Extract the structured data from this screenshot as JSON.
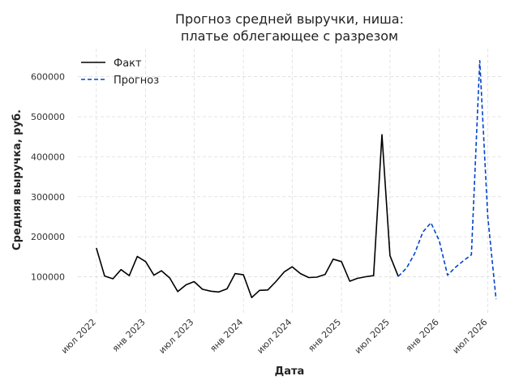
{
  "chart_data": {
    "type": "line",
    "title": [
      "Прогноз средней выручки, ниша:",
      "платье облегающее с разрезом"
    ],
    "xlabel": "Дата",
    "ylabel": "Средняя выручка, руб.",
    "xlim": [
      "2022-04-23",
      "2026-08-20"
    ],
    "ylim": [
      10000,
      670000
    ],
    "grid": true,
    "legend_position": "top-left",
    "x_ticks": [
      {
        "label": "июл 2022",
        "date": "2022-07-01"
      },
      {
        "label": "янв 2023",
        "date": "2023-01-01"
      },
      {
        "label": "июл 2023",
        "date": "2023-07-01"
      },
      {
        "label": "янв 2024",
        "date": "2024-01-01"
      },
      {
        "label": "июл 2024",
        "date": "2024-07-01"
      },
      {
        "label": "янв 2025",
        "date": "2025-01-01"
      },
      {
        "label": "июл 2025",
        "date": "2025-07-01"
      },
      {
        "label": "янв 2026",
        "date": "2026-01-01"
      },
      {
        "label": "июл 2026",
        "date": "2026-07-01"
      }
    ],
    "y_ticks": [
      {
        "label": "100000",
        "value": 100000
      },
      {
        "label": "200000",
        "value": 200000
      },
      {
        "label": "300000",
        "value": 300000
      },
      {
        "label": "400000",
        "value": 400000
      },
      {
        "label": "500000",
        "value": 500000
      },
      {
        "label": "600000",
        "value": 600000
      }
    ],
    "series": [
      {
        "name": "Факт",
        "color": "#000000",
        "style": "solid",
        "x": [
          "2022-07-01",
          "2022-08-01",
          "2022-09-01",
          "2022-10-01",
          "2022-11-01",
          "2022-12-01",
          "2023-01-01",
          "2023-02-01",
          "2023-03-01",
          "2023-04-01",
          "2023-05-01",
          "2023-06-01",
          "2023-07-01",
          "2023-08-01",
          "2023-09-01",
          "2023-10-01",
          "2023-11-01",
          "2023-12-01",
          "2024-01-01",
          "2024-02-01",
          "2024-03-01",
          "2024-04-01",
          "2024-05-01",
          "2024-06-01",
          "2024-07-01",
          "2024-08-01",
          "2024-09-01",
          "2024-10-01",
          "2024-11-01",
          "2024-12-01",
          "2025-01-01",
          "2025-02-01",
          "2025-03-01",
          "2025-04-01",
          "2025-05-01",
          "2025-06-01",
          "2025-07-01",
          "2025-08-01"
        ],
        "y": [
          172000,
          102000,
          95000,
          118000,
          103000,
          151000,
          138000,
          104000,
          115000,
          97000,
          63000,
          80000,
          88000,
          69000,
          64000,
          62000,
          70000,
          108000,
          105000,
          48000,
          66000,
          67000,
          88000,
          112000,
          125000,
          108000,
          98000,
          99000,
          106000,
          144000,
          138000,
          89000,
          96000,
          100000,
          103000,
          455000,
          153000,
          101000
        ]
      },
      {
        "name": "Прогноз",
        "color": "#0044cc",
        "style": "dashed",
        "x": [
          "2025-08-01",
          "2025-09-01",
          "2025-10-01",
          "2025-11-01",
          "2025-12-01",
          "2026-01-01",
          "2026-02-01",
          "2026-03-01",
          "2026-04-01",
          "2026-05-01",
          "2026-06-01",
          "2026-07-01",
          "2026-08-01"
        ],
        "y": [
          101000,
          122000,
          158000,
          212000,
          235000,
          190000,
          104000,
          123000,
          140000,
          155000,
          640000,
          250000,
          44000
        ]
      }
    ]
  }
}
